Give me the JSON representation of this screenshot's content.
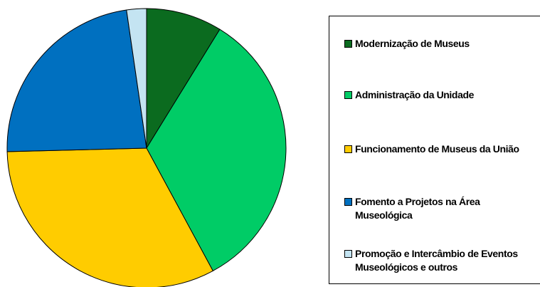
{
  "chart_data": {
    "type": "pie",
    "categories": [
      "Modernização de Museus",
      "Administração da Unidade",
      "Funcionamento de Museus da União",
      "Fomento a Projetos na Área Museológica",
      "Promoção e Intercâmbio de Eventos Museológicos e outros"
    ],
    "values": [
      8.8,
      33.3,
      32.5,
      23.1,
      2.3
    ],
    "colors": [
      "#0b6b1f",
      "#00cc66",
      "#ffcc00",
      "#0070c0",
      "#c4e4f2"
    ],
    "legend": "right"
  }
}
